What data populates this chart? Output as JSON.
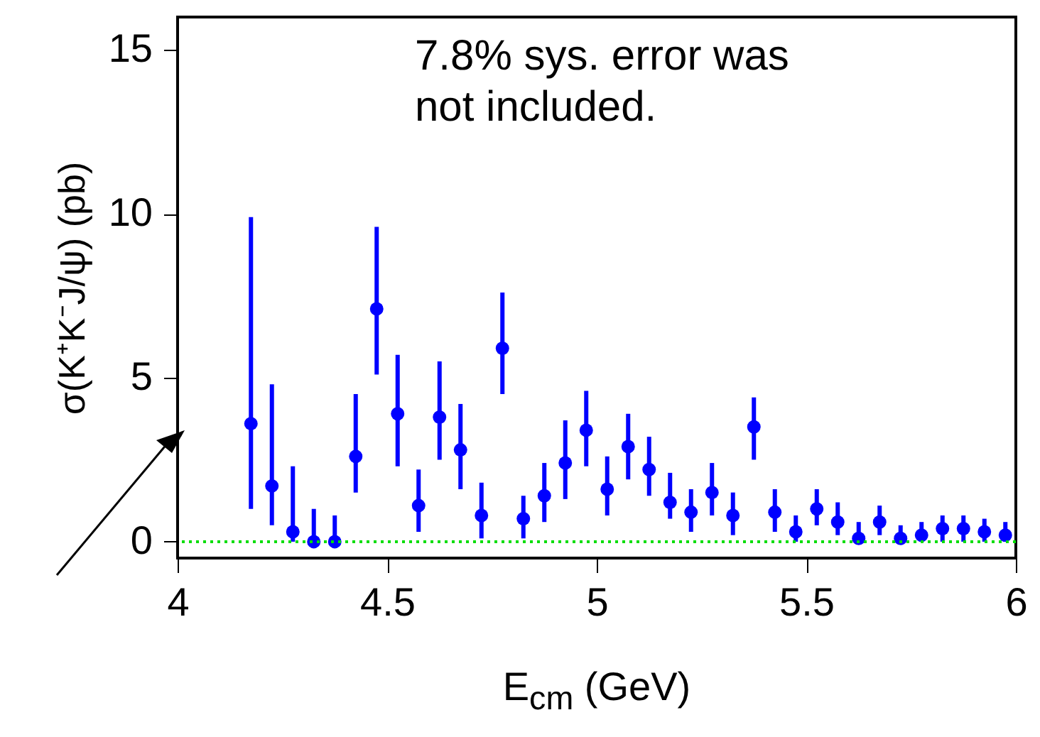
{
  "chart_data": {
    "type": "scatter",
    "xlabel": "E$_{cm}$ (GeV)",
    "ylabel": "σ(K⁺K⁻J/ψ) (pb)",
    "annotations": [
      "7.8% sys. error was not included."
    ],
    "x": [
      4.175,
      4.225,
      4.275,
      4.325,
      4.375,
      4.425,
      4.475,
      4.525,
      4.575,
      4.625,
      4.675,
      4.725,
      4.775,
      4.825,
      4.875,
      4.925,
      4.975,
      5.025,
      5.075,
      5.125,
      5.175,
      5.225,
      5.275,
      5.325,
      5.375,
      5.425,
      5.475,
      5.525,
      5.575,
      5.625,
      5.675,
      5.725,
      5.775,
      5.825,
      5.875,
      5.925,
      5.975
    ],
    "series": [
      {
        "color": "#0000ff",
        "values": [
          3.6,
          1.7,
          0.3,
          0,
          0,
          2.6,
          7.1,
          3.9,
          1.1,
          3.8,
          2.8,
          0.8,
          5.9,
          0.7,
          1.4,
          2.4,
          3.4,
          1.6,
          2.9,
          2.2,
          1.2,
          0.9,
          1.5,
          0.8,
          3.5,
          0.9,
          0.3,
          1.0,
          0.6,
          0.1,
          0.6,
          0.1,
          0.2,
          0.4,
          0.4,
          0.3,
          0.2
        ],
        "errors": [
          [
            1.0,
            9.9
          ],
          [
            0.5,
            4.8
          ],
          [
            0,
            2.3
          ],
          [
            0,
            1.0
          ],
          [
            0,
            0.8
          ],
          [
            1.5,
            4.5
          ],
          [
            5.1,
            9.6
          ],
          [
            2.3,
            5.7
          ],
          [
            0.3,
            2.2
          ],
          [
            2.5,
            5.5
          ],
          [
            1.6,
            4.2
          ],
          [
            0.1,
            1.8
          ],
          [
            4.5,
            7.6
          ],
          [
            0.1,
            1.4
          ],
          [
            0.6,
            2.4
          ],
          [
            1.3,
            3.7
          ],
          [
            2.3,
            4.6
          ],
          [
            0.8,
            2.6
          ],
          [
            1.9,
            3.9
          ],
          [
            1.4,
            3.2
          ],
          [
            0.7,
            2.1
          ],
          [
            0.3,
            1.6
          ],
          [
            0.8,
            2.4
          ],
          [
            0.2,
            1.5
          ],
          [
            2.5,
            4.4
          ],
          [
            0.3,
            1.6
          ],
          [
            0,
            0.8
          ],
          [
            0.5,
            1.6
          ],
          [
            0.2,
            1.2
          ],
          [
            0,
            0.6
          ],
          [
            0.2,
            1.1
          ],
          [
            0,
            0.5
          ],
          [
            0,
            0.6
          ],
          [
            0,
            0.8
          ],
          [
            0,
            0.8
          ],
          [
            0,
            0.7
          ],
          [
            0,
            0.6
          ]
        ]
      }
    ],
    "xlim": [
      4,
      6
    ],
    "xticks": [
      4,
      4.5,
      5,
      5.5,
      6
    ],
    "ylim": [
      -0.5,
      16
    ],
    "yticks": [
      0,
      5,
      10,
      15
    ],
    "ref_lines": [
      {
        "axis": "y",
        "value": 0,
        "color": "#00dd00",
        "line_style": "dotted"
      }
    ],
    "marker": "circle",
    "grid": false
  }
}
